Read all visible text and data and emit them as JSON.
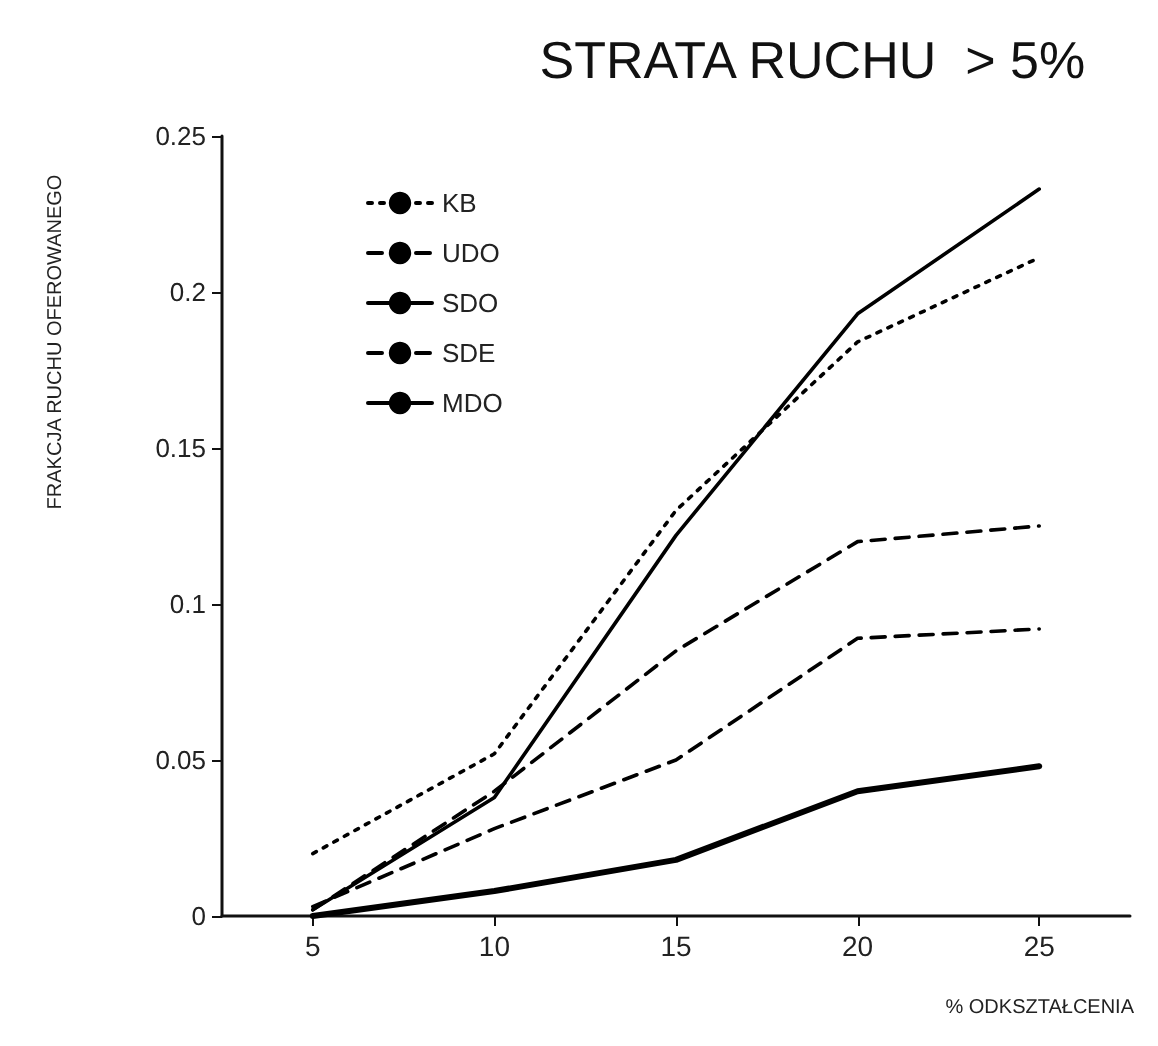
{
  "chart_data": {
    "type": "line",
    "title": "STRATA RUCHU  > 5%",
    "xlabel": "% ODKSZTAŁCENIA",
    "ylabel": "FRAKCJA RUCHU OFEROWANEGO",
    "x": [
      5,
      10,
      15,
      20,
      25
    ],
    "series": [
      {
        "name": "KB",
        "color": "#000000",
        "line_style": "dotted",
        "values": [
          0.02,
          0.052,
          0.13,
          0.184,
          0.211
        ]
      },
      {
        "name": "UDO",
        "color": "#000000",
        "line_style": "dashed",
        "values": [
          0.002,
          0.04,
          0.085,
          0.12,
          0.125
        ]
      },
      {
        "name": "SDO",
        "color": "#000000",
        "line_style": "solid",
        "values": [
          0.002,
          0.038,
          0.122,
          0.193,
          0.233
        ]
      },
      {
        "name": "SDE",
        "color": "#000000",
        "line_style": "dashed",
        "values": [
          0.003,
          0.028,
          0.05,
          0.089,
          0.092
        ]
      },
      {
        "name": "MDO",
        "color": "#000000",
        "line_style": "solid",
        "values": [
          0,
          0.008,
          0.018,
          0.04,
          0.048
        ]
      }
    ],
    "xlim": [
      2.5,
      27.5
    ],
    "xticks": [
      5,
      10,
      15,
      20,
      25
    ],
    "ylim": [
      0,
      0.25
    ],
    "yticks": [
      0,
      0.05,
      0.1,
      0.15,
      0.2,
      0.25
    ],
    "grid": false,
    "legend": "top left",
    "marker": "none"
  }
}
